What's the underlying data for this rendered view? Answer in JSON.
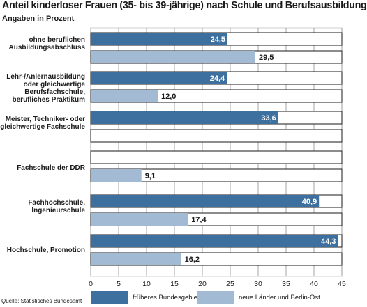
{
  "chart_data": {
    "type": "bar",
    "orientation": "horizontal",
    "title": "Anteil kinderloser Frauen (35- bis 39-jährige) nach Schule und Berufsausbildung",
    "subtitle": "Angaben in Prozent",
    "categories": [
      [
        "ohne beruflichen",
        "Ausbildungsabschluss"
      ],
      [
        "Lehr-/Anlernausbildung",
        "oder gleichwertige",
        "Berufsfachschule,",
        "berufliches Praktikum"
      ],
      [
        "Meister, Techniker- oder",
        "gleichwertige Fachschule"
      ],
      [
        "Fachschule der DDR"
      ],
      [
        "Fachhochschule,",
        "Ingenieurschule"
      ],
      [
        "Hochschule, Promotion"
      ]
    ],
    "series": [
      {
        "name": "früheres Bundesgebiet",
        "color": "#3d6f9f",
        "values": [
          24.5,
          24.4,
          33.6,
          null,
          40.9,
          44.3
        ],
        "labels": [
          "24,5",
          "24,4",
          "33,6",
          "",
          "40,9",
          "44,3"
        ]
      },
      {
        "name": "neue Länder und Berlin-Ost",
        "color": "#a2bad4",
        "values": [
          29.5,
          12.0,
          null,
          9.1,
          17.4,
          16.2
        ],
        "labels": [
          "29,5",
          "12,0",
          "",
          "9,1",
          "17,4",
          "16,2"
        ]
      }
    ],
    "xlim": [
      0,
      45
    ],
    "xticks": [
      "0",
      "5",
      "10",
      "15",
      "20",
      "25",
      "30",
      "35",
      "40",
      "45"
    ],
    "grid": true,
    "legend_position": "bottom"
  },
  "source": "Quelle: Statistisches Bundesamt"
}
